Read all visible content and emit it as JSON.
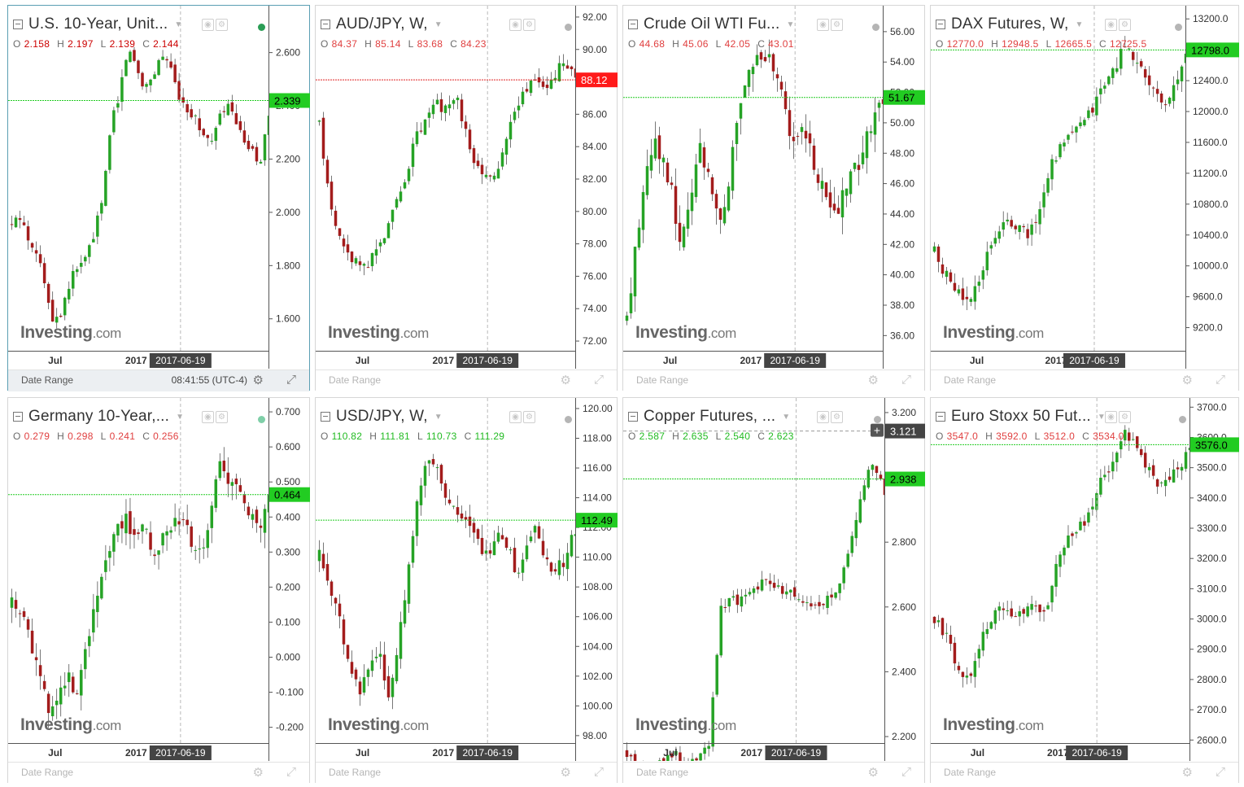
{
  "footer_label": "Date Range",
  "colors": {
    "up": "#26a326",
    "down": "#a31c1c",
    "priceLine": "#22cc22",
    "accent": "#5b9fb3"
  },
  "chart_data": [
    {
      "type": "candlestick",
      "title": "U.S. 10-Year, Unit...",
      "ohlc": {
        "o": "2.158",
        "h": "2.197",
        "l": "2.139",
        "c": "2.144"
      },
      "ohlc_color": "#cc0000",
      "yticks": [
        "2.600",
        "2.400",
        "2.200",
        "2.000",
        "1.800",
        "1.600"
      ],
      "ylim": [
        1.48,
        2.77
      ],
      "xticks": [
        "Jul",
        "2017"
      ],
      "cursor_date": "2017-06-19",
      "price_label": "2.339",
      "price_level": 2.42,
      "price_label_color": "#22cc22",
      "status": "#2a9d55",
      "clock": "08:41:55",
      "timezone": "(UTC-4)",
      "path": [
        1.95,
        1.98,
        1.9,
        1.86,
        1.72,
        1.6,
        1.63,
        1.74,
        1.8,
        1.83,
        1.93,
        2.05,
        2.35,
        2.45,
        2.62,
        2.55,
        2.47,
        2.51,
        2.6,
        2.55,
        2.45,
        2.4,
        2.36,
        2.3,
        2.25,
        2.35,
        2.41,
        2.33,
        2.27,
        2.22,
        2.2,
        2.36
      ],
      "noise": 0.04
    },
    {
      "type": "candlestick",
      "title": "AUD/JPY, W,",
      "ohlc": {
        "o": "84.37",
        "h": "85.14",
        "l": "83.68",
        "c": "84.23"
      },
      "ohlc_color": "#e04040",
      "yticks": [
        "92.00",
        "90.00",
        "88.00",
        "86.00",
        "84.00",
        "82.00",
        "80.00",
        "78.00",
        "76.00",
        "74.00",
        "72.00"
      ],
      "ylim": [
        71.4,
        92.6
      ],
      "xticks": [
        "Jul",
        "2017"
      ],
      "cursor_date": "2017-06-19",
      "price_label": "88.12",
      "price_level": 88.12,
      "price_label_color": "#ff1a1a",
      "path": [
        85.5,
        80.5,
        78.0,
        77.0,
        76.5,
        77.2,
        78.5,
        80.0,
        82.0,
        84.5,
        85.8,
        86.6,
        86.2,
        86.8,
        84.0,
        82.5,
        82.0,
        83.0,
        85.5,
        87.0,
        88.5,
        87.5,
        88.2,
        89.5,
        88.0
      ],
      "noise": 0.7
    },
    {
      "type": "candlestick",
      "title": "Crude Oil WTI Fu...",
      "ohlc": {
        "o": "44.68",
        "h": "45.06",
        "l": "42.05",
        "c": "43.01"
      },
      "ohlc_color": "#e04040",
      "yticks": [
        "56.00",
        "54.00",
        "52.00",
        "50.00",
        "48.00",
        "46.00",
        "44.00",
        "42.00",
        "40.00",
        "38.00",
        "36.00"
      ],
      "ylim": [
        35.0,
        57.6
      ],
      "xticks": [
        "Jul",
        "2017"
      ],
      "cursor_date": "2017-06-19",
      "price_label": "51.67",
      "price_level": 51.67,
      "price_label_color": "#22cc22",
      "path": [
        37.0,
        42.0,
        46.5,
        49.0,
        47.5,
        45.0,
        42.0,
        44.5,
        49.0,
        46.0,
        44.0,
        45.0,
        50.0,
        53.0,
        54.0,
        54.5,
        53.5,
        52.0,
        49.0,
        50.0,
        48.0,
        46.0,
        45.0,
        44.0,
        46.0,
        47.0,
        48.5,
        50.0,
        51.67
      ],
      "noise": 1.3
    },
    {
      "type": "candlestick",
      "title": "DAX Futures, W,",
      "ohlc": {
        "o": "12770.0",
        "h": "12948.5",
        "l": "12665.5",
        "c": "12725.5"
      },
      "ohlc_color": "#e04040",
      "yticks": [
        "13200.0",
        "12800.0",
        "12400.0",
        "12000.0",
        "11600.0",
        "11200.0",
        "10800.0",
        "10400.0",
        "10000.0",
        "9600.0",
        "9200.0"
      ],
      "ylim": [
        8900,
        13350
      ],
      "xticks": [
        "Jul",
        "2017"
      ],
      "cursor_date": "2017-06-19",
      "price_label": "12798.0",
      "price_level": 12798,
      "price_label_color": "#22cc22",
      "path": [
        10200,
        9900,
        9700,
        9500,
        9700,
        10200,
        10400,
        10600,
        10500,
        10400,
        10700,
        11300,
        11500,
        11700,
        11800,
        12000,
        12300,
        12500,
        12800,
        12700,
        12500,
        12200,
        12100,
        12300,
        12700
      ],
      "noise": 160
    },
    {
      "type": "candlestick",
      "title": "Germany 10-Year,...",
      "ohlc": {
        "o": "0.279",
        "h": "0.298",
        "l": "0.241",
        "c": "0.256"
      },
      "ohlc_color": "#e04040",
      "yticks": [
        "0.700",
        "0.600",
        "0.500",
        "0.400",
        "0.300",
        "0.200",
        "0.100",
        "0.000",
        "-0.100",
        "-0.200"
      ],
      "ylim": [
        -0.245,
        0.735
      ],
      "xticks": [
        "Jul",
        "2017"
      ],
      "cursor_date": "2017-06-19",
      "price_label": "0.464",
      "price_level": 0.464,
      "price_label_color": "#22cc22",
      "status": "#7fcfa8",
      "path": [
        0.15,
        0.13,
        0.05,
        -0.05,
        -0.15,
        -0.12,
        -0.06,
        -0.1,
        0.05,
        0.2,
        0.3,
        0.35,
        0.4,
        0.33,
        0.4,
        0.28,
        0.35,
        0.4,
        0.38,
        0.33,
        0.3,
        0.45,
        0.55,
        0.5,
        0.45,
        0.4,
        0.35,
        0.45
      ],
      "noise": 0.05
    },
    {
      "type": "candlestick",
      "title": "USD/JPY, W,",
      "ohlc": {
        "o": "110.82",
        "h": "111.81",
        "l": "110.73",
        "c": "111.29"
      },
      "ohlc_color": "#22bb22",
      "yticks": [
        "120.00",
        "118.00",
        "116.00",
        "114.00",
        "112.00",
        "110.00",
        "108.00",
        "106.00",
        "104.00",
        "102.00",
        "100.00",
        "98.00"
      ],
      "ylim": [
        97.5,
        120.6
      ],
      "xticks": [
        "Jul",
        "2017"
      ],
      "cursor_date": "2017-06-19",
      "price_label": "112.49",
      "price_level": 112.49,
      "price_label_color": "#22cc22",
      "path": [
        110,
        108,
        106,
        103,
        101,
        102,
        104,
        101,
        104,
        109,
        114,
        117,
        116,
        114,
        113,
        112,
        111,
        110,
        112,
        111,
        109,
        111,
        112,
        110,
        109,
        110,
        112
      ],
      "noise": 1.0
    },
    {
      "type": "candlestick",
      "title": "Copper Futures, ...",
      "ohlc": {
        "o": "2.587",
        "h": "2.635",
        "l": "2.540",
        "c": "2.623"
      },
      "ohlc_color": "#22bb22",
      "yticks": [
        "3.200",
        "3.000",
        "2.800",
        "2.600",
        "2.400",
        "2.200"
      ],
      "ylim": [
        2.18,
        3.24
      ],
      "xticks": [
        "Jul",
        "2017"
      ],
      "cursor_date": "2017-06-19",
      "price_label": "2.938",
      "price_level": 2.995,
      "price_label_color": "#22cc22",
      "hover_label": "3.121",
      "hover_level": 3.143,
      "path": [
        2.15,
        2.1,
        2.08,
        2.12,
        2.15,
        2.1,
        2.14,
        2.18,
        2.6,
        2.62,
        2.62,
        2.66,
        2.68,
        2.65,
        2.64,
        2.62,
        2.6,
        2.62,
        2.65,
        2.8,
        2.95,
        3.05,
        2.95
      ],
      "noise": 0.03
    },
    {
      "type": "candlestick",
      "title": "Euro Stoxx 50 Fut...",
      "ohlc": {
        "o": "3547.0",
        "h": "3592.0",
        "l": "3512.0",
        "c": "3534.0"
      },
      "ohlc_color": "#e04040",
      "yticks": [
        "3700.0",
        "3600.0",
        "3500.0",
        "3400.0",
        "3300.0",
        "3200.0",
        "3100.0",
        "3000.0",
        "2900.0",
        "2800.0",
        "2700.0",
        "2600.0"
      ],
      "ylim": [
        2590,
        3725
      ],
      "xticks": [
        "Jul",
        "2017"
      ],
      "cursor_date": "2017-06-19",
      "price_label": "3576.0",
      "price_level": 3576,
      "price_label_color": "#22cc22",
      "path": [
        3000,
        2950,
        2850,
        2800,
        2900,
        3000,
        3050,
        3000,
        3020,
        3050,
        3000,
        3200,
        3280,
        3300,
        3350,
        3450,
        3500,
        3620,
        3580,
        3500,
        3450,
        3450,
        3500,
        3560
      ],
      "noise": 40
    }
  ]
}
